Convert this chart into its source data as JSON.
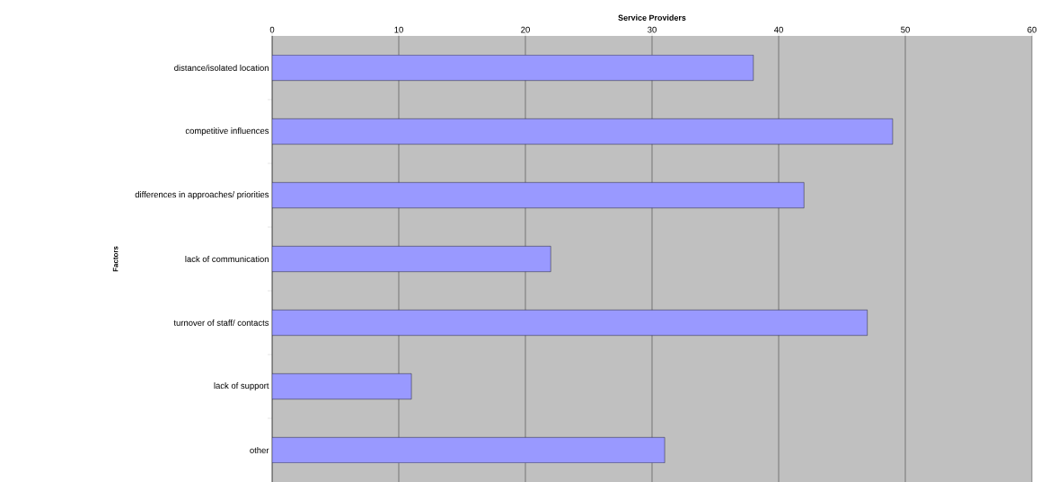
{
  "chart_data": {
    "type": "bar",
    "orientation": "horizontal",
    "xlabel": "Service Providers",
    "ylabel": "Factors",
    "categories": [
      "distance/isolated location",
      "competitive influences",
      "differences in approaches/ priorities",
      "lack of communication",
      "turnover of staff/ contacts",
      "lack of support",
      "other"
    ],
    "values": [
      38,
      49,
      42,
      22,
      47,
      11,
      31
    ],
    "color": "#9999ff",
    "xlim": [
      0,
      60
    ],
    "xticks": [
      0,
      10,
      20,
      30,
      40,
      50,
      60
    ],
    "grid": "x"
  }
}
